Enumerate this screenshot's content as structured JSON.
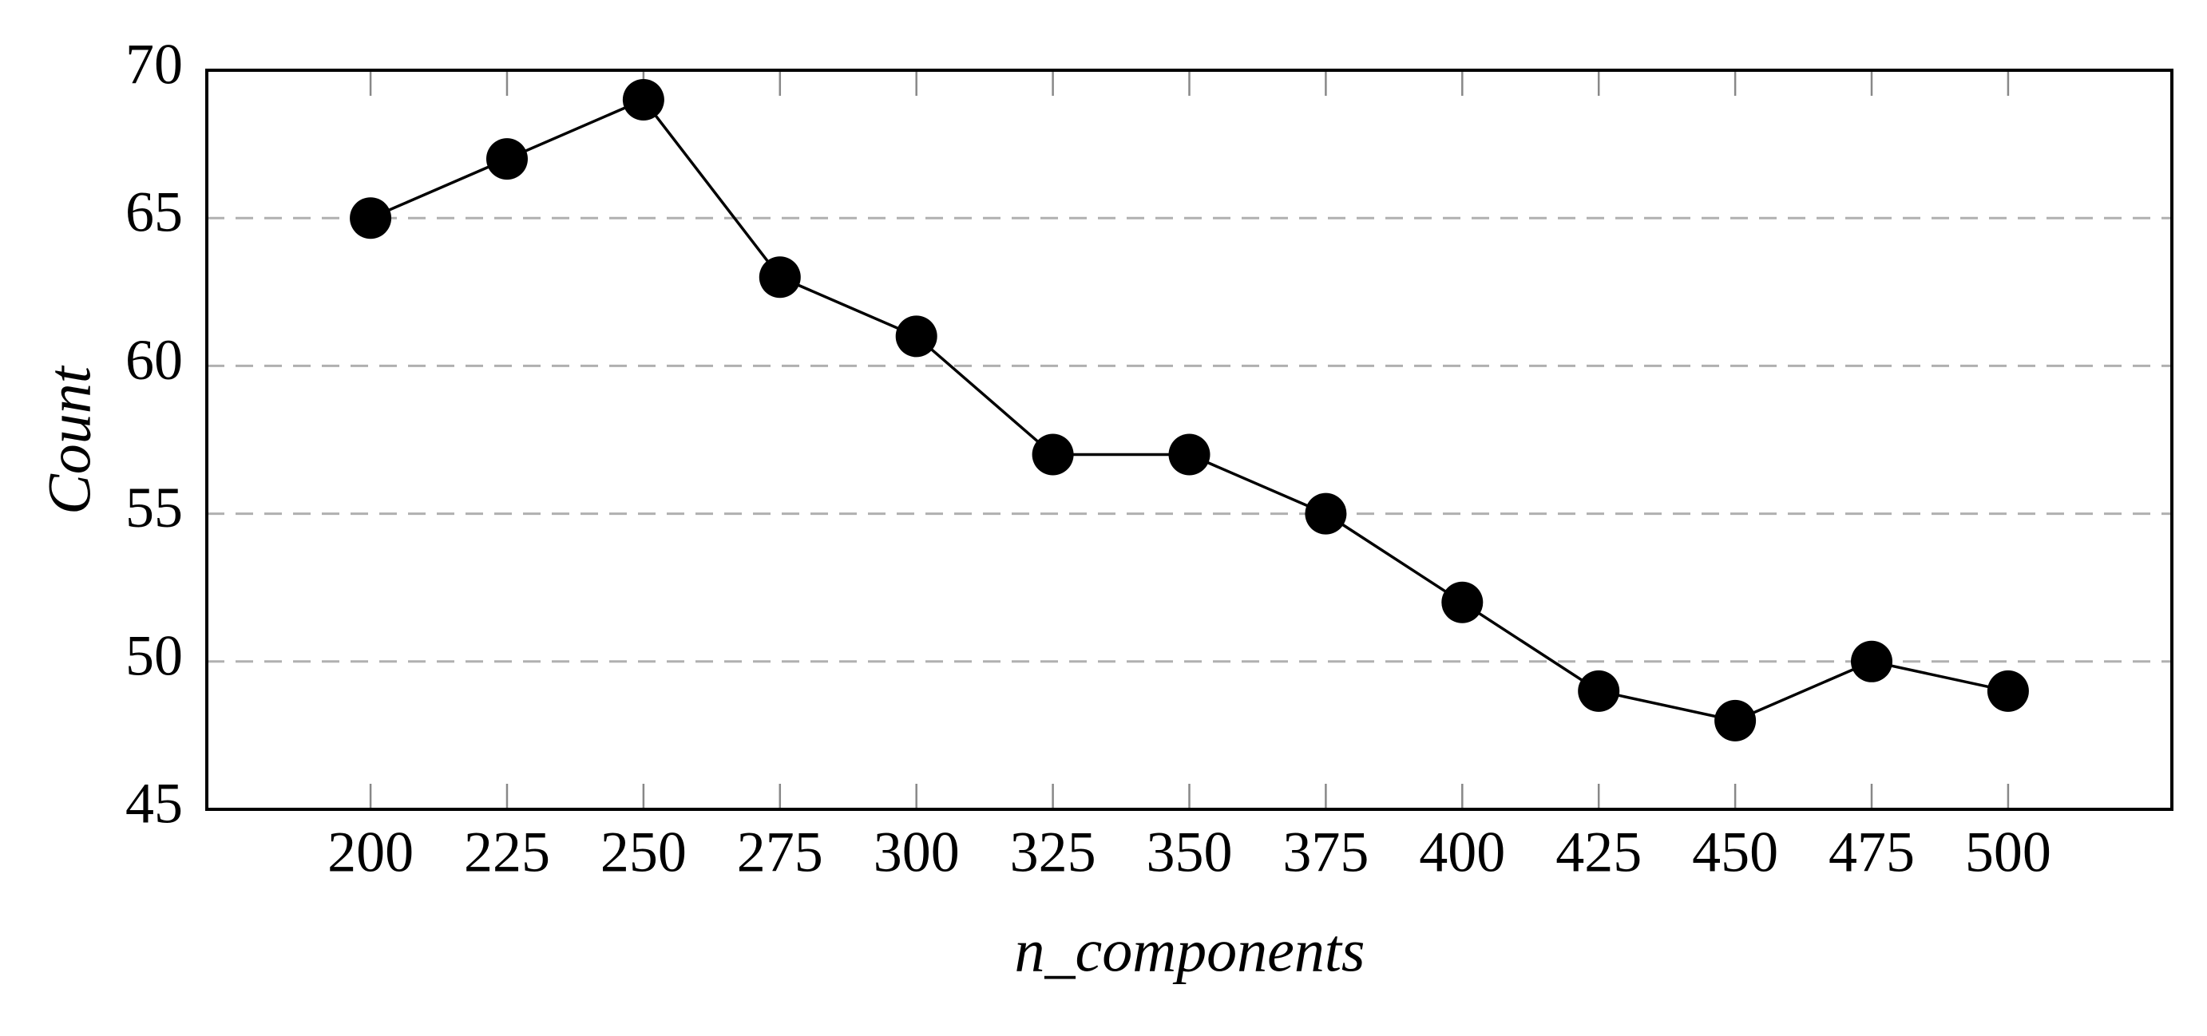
{
  "chart_data": {
    "type": "line",
    "x_label": "n_components",
    "y_label": "Count",
    "x": [
      200,
      225,
      250,
      275,
      300,
      325,
      350,
      375,
      400,
      425,
      450,
      475,
      500
    ],
    "series": [
      {
        "color": "#000000",
        "values": [
          65,
          67,
          69,
          63,
          61,
          57,
          57,
          55,
          52,
          49,
          48,
          50,
          49
        ]
      }
    ],
    "xlim": [
      170,
      530
    ],
    "xticks": [
      200,
      225,
      250,
      275,
      300,
      325,
      350,
      375,
      400,
      425,
      450,
      475,
      500
    ],
    "ylim": [
      45,
      70
    ],
    "yticks": [
      45,
      50,
      55,
      60,
      65,
      70
    ],
    "grid": true
  }
}
